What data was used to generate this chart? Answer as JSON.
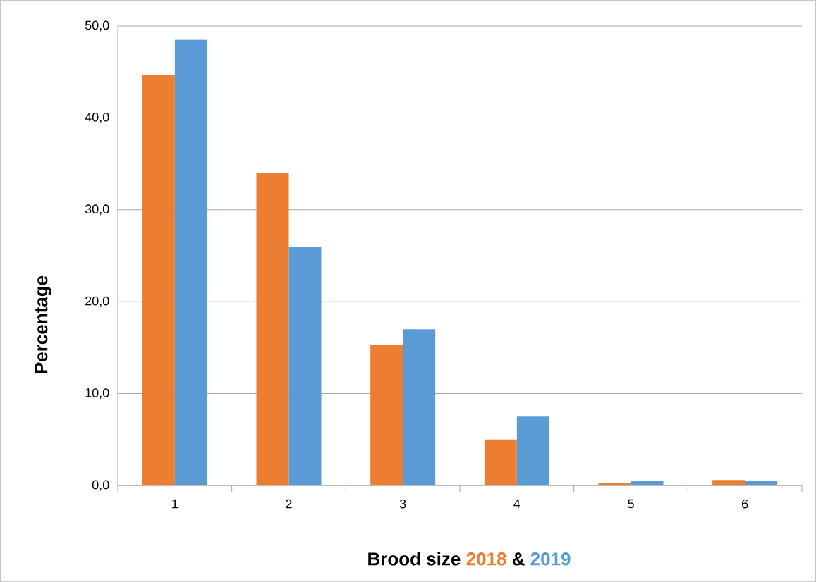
{
  "chart_data": {
    "type": "bar",
    "xlabel": "Brood size",
    "ylabel": "Percentage",
    "annotations": [
      "&"
    ],
    "categories": [
      "1",
      "2",
      "3",
      "4",
      "5",
      "6"
    ],
    "series": [
      {
        "name": "2018",
        "color": "#ed7d31",
        "values": [
          44.7,
          34.0,
          15.3,
          5.0,
          0.3,
          0.6
        ]
      },
      {
        "name": "2019",
        "color": "#5b9bd5",
        "values": [
          48.5,
          26.0,
          17.0,
          7.5,
          0.5,
          0.5
        ]
      }
    ],
    "ylim": [
      0,
      50
    ],
    "yticks": [
      {
        "value": 0,
        "label": "0,0"
      },
      {
        "value": 10,
        "label": "10,0"
      },
      {
        "value": 20,
        "label": "20,0"
      },
      {
        "value": 30,
        "label": "30,0"
      },
      {
        "value": 40,
        "label": "40,0"
      },
      {
        "value": 50,
        "label": "50,0"
      }
    ],
    "grid": "y"
  }
}
